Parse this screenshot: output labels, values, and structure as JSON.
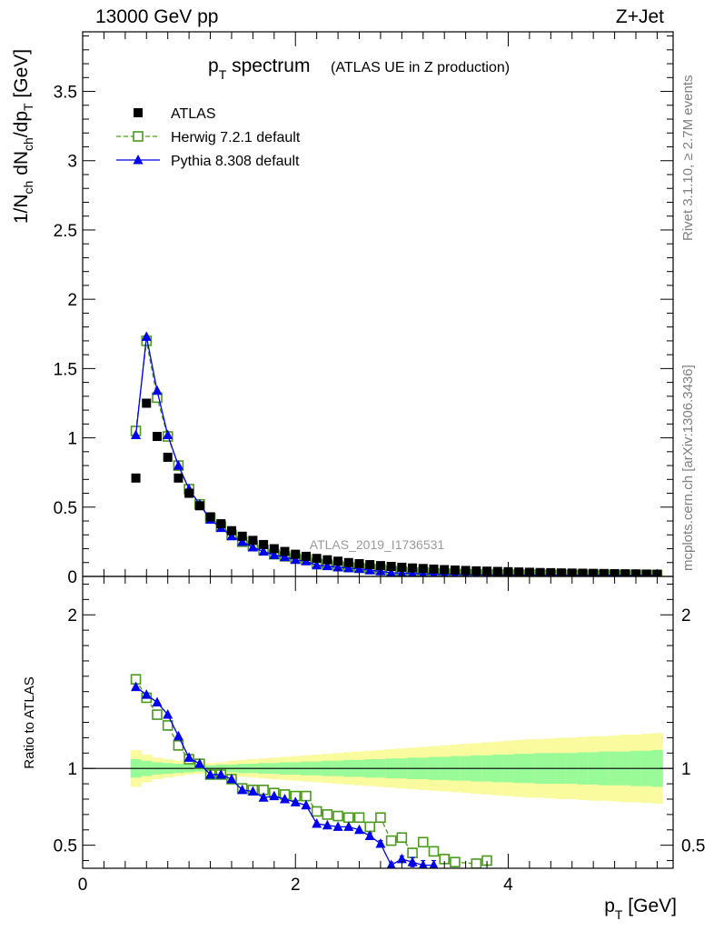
{
  "header": {
    "left": "13000 GeV pp",
    "right": "Z+Jet"
  },
  "side_labels": {
    "rivet": "Rivet 3.1.10, ≥ 2.7M events",
    "mcplots": "mcplots.cern.ch [arXiv:1306.3436]"
  },
  "watermark": "ATLAS_2019_I1736531",
  "chart_data": [
    {
      "type": "scatter",
      "panel": "main",
      "title_main": "p",
      "title_sub": "T",
      "title_rest": " spectrum",
      "title_paren": "(ATLAS UE in Z production)",
      "ylabel_parts": [
        "1/N",
        "ch",
        " dN",
        "ch",
        "/dp",
        "T",
        " [GeV]"
      ],
      "xlim": [
        0,
        5.55
      ],
      "ylim": [
        0,
        3.93
      ],
      "yticks": [
        0,
        0.5,
        1,
        1.5,
        2,
        2.5,
        3,
        3.5
      ],
      "ytick_labels": [
        "0",
        "0.5",
        "1",
        "1.5",
        "2",
        "2.5",
        "3",
        "3.5"
      ],
      "legend_position": "top-left",
      "series": [
        {
          "name": "ATLAS",
          "color": "#000000",
          "marker": "filled-square",
          "x": [
            0.5,
            0.6,
            0.7,
            0.8,
            0.9,
            1.0,
            1.1,
            1.2,
            1.3,
            1.4,
            1.5,
            1.6,
            1.7,
            1.8,
            1.9,
            2.0,
            2.1,
            2.2,
            2.3,
            2.4,
            2.5,
            2.6,
            2.7,
            2.8,
            2.9,
            3.0,
            3.1,
            3.2,
            3.3,
            3.4,
            3.5,
            3.6,
            3.7,
            3.8,
            3.9,
            4.0,
            4.1,
            4.2,
            4.3,
            4.4,
            4.5,
            4.6,
            4.7,
            4.8,
            4.9,
            5.0,
            5.1,
            5.2,
            5.3,
            5.4
          ],
          "y": [
            0.71,
            1.25,
            1.01,
            0.86,
            0.71,
            0.6,
            0.51,
            0.43,
            0.38,
            0.33,
            0.29,
            0.26,
            0.23,
            0.2,
            0.18,
            0.16,
            0.145,
            0.13,
            0.12,
            0.11,
            0.1,
            0.092,
            0.085,
            0.078,
            0.072,
            0.066,
            0.061,
            0.057,
            0.053,
            0.049,
            0.046,
            0.043,
            0.04,
            0.038,
            0.036,
            0.034,
            0.032,
            0.03,
            0.028,
            0.027,
            0.025,
            0.024,
            0.023,
            0.022,
            0.021,
            0.02,
            0.019,
            0.018,
            0.017,
            0.016
          ]
        },
        {
          "name": "Herwig 7.2.1 default",
          "color": "#4a9a1c",
          "marker": "open-square",
          "line": "dashed",
          "x": [
            0.5,
            0.6,
            0.7,
            0.8,
            0.9,
            1.0,
            1.1,
            1.2,
            1.3,
            1.4,
            1.5,
            1.6,
            1.7,
            1.8,
            1.9,
            2.0,
            2.1,
            2.2,
            2.3,
            2.4,
            2.5,
            2.6,
            2.7,
            2.8,
            2.9,
            3.0,
            3.1,
            3.2,
            3.3,
            3.4,
            3.5,
            3.6,
            3.7,
            3.8,
            3.9,
            4.0,
            4.1,
            4.2,
            4.3,
            4.4,
            4.5,
            4.6,
            4.7,
            4.8,
            4.9,
            5.0,
            5.1,
            5.2,
            5.3,
            5.4
          ],
          "y": [
            1.05,
            1.7,
            1.29,
            1.01,
            0.8,
            0.63,
            0.52,
            0.42,
            0.36,
            0.3,
            0.25,
            0.22,
            0.19,
            0.16,
            0.145,
            0.13,
            0.12,
            0.095,
            0.085,
            0.075,
            0.068,
            0.062,
            0.055,
            0.05,
            0.04,
            0.036,
            0.028,
            0.03,
            0.024,
            0.02,
            0.018,
            0.016,
            0.015,
            0.015,
            0.014,
            0.014,
            0.013,
            0.013,
            0.013,
            0.012,
            0.012,
            0.012,
            0.011,
            0.011,
            0.011,
            0.01,
            0.01,
            0.01,
            0.01,
            0.009
          ]
        },
        {
          "name": "Pythia 8.308 default",
          "color": "#0000ee",
          "marker": "filled-triangle",
          "line": "solid",
          "x": [
            0.5,
            0.6,
            0.7,
            0.8,
            0.9,
            1.0,
            1.1,
            1.2,
            1.3,
            1.4,
            1.5,
            1.6,
            1.7,
            1.8,
            1.9,
            2.0,
            2.1,
            2.2,
            2.3,
            2.4,
            2.5,
            2.6,
            2.7,
            2.8,
            2.9,
            3.0,
            3.1,
            3.2,
            3.3,
            3.4,
            3.5,
            3.6,
            3.7,
            3.8,
            3.9,
            4.0,
            4.1,
            4.2,
            4.3,
            4.4,
            4.5,
            4.6,
            4.7,
            4.8,
            4.9,
            5.0,
            5.1,
            5.2,
            5.3,
            5.4
          ],
          "y": [
            1.02,
            1.73,
            1.34,
            1.02,
            0.8,
            0.63,
            0.52,
            0.41,
            0.35,
            0.29,
            0.25,
            0.21,
            0.18,
            0.155,
            0.14,
            0.12,
            0.11,
            0.08,
            0.075,
            0.066,
            0.06,
            0.055,
            0.044,
            0.038,
            0.026,
            0.025,
            0.021,
            0.018,
            0.016,
            0.015,
            0.014,
            0.013,
            0.012,
            0.012,
            0.011,
            0.011,
            0.01,
            0.01,
            0.01,
            0.009,
            0.009,
            0.009,
            0.008,
            0.008,
            0.008,
            0.008,
            0.007,
            0.007,
            0.007,
            0.007
          ]
        }
      ]
    },
    {
      "type": "scatter",
      "panel": "ratio",
      "ylabel": "Ratio to ATLAS",
      "xlabel_main": "p",
      "xlabel_sub": "T",
      "xlabel_rest": " [GeV]",
      "xlim": [
        0,
        5.55
      ],
      "ylim": [
        0.35,
        2.25
      ],
      "xticks": [
        0,
        2,
        4
      ],
      "xtick_labels": [
        "0",
        "2",
        "4"
      ],
      "yticks": [
        0.5,
        1,
        2
      ],
      "ytick_labels": [
        "0.5",
        "1",
        "2"
      ],
      "bands": {
        "x_edges": [
          0.45,
          0.55,
          0.65,
          0.75,
          0.85,
          0.95,
          1.05,
          1.15,
          1.25,
          1.35,
          1.45,
          1.55,
          1.65,
          1.75,
          1.85,
          1.95,
          2.05,
          2.15,
          2.25,
          2.35,
          2.45,
          2.55,
          2.65,
          2.75,
          2.85,
          2.95,
          3.05,
          3.15,
          3.25,
          3.35,
          3.45,
          3.55,
          3.65,
          3.75,
          3.85,
          3.95,
          4.05,
          4.15,
          4.25,
          4.35,
          4.45,
          4.55,
          4.65,
          4.75,
          4.85,
          4.95,
          5.05,
          5.15,
          5.25,
          5.35,
          5.45
        ],
        "stat_half_width": [
          0.06,
          0.05,
          0.04,
          0.035,
          0.03,
          0.025,
          0.02,
          0.02,
          0.025,
          0.025,
          0.03,
          0.03,
          0.035,
          0.035,
          0.04,
          0.04,
          0.045,
          0.045,
          0.05,
          0.05,
          0.055,
          0.055,
          0.06,
          0.06,
          0.065,
          0.065,
          0.07,
          0.07,
          0.075,
          0.075,
          0.08,
          0.08,
          0.085,
          0.085,
          0.09,
          0.09,
          0.095,
          0.095,
          0.1,
          0.1,
          0.1,
          0.1,
          0.105,
          0.105,
          0.11,
          0.11,
          0.11,
          0.115,
          0.115,
          0.12
        ],
        "total_half_width": [
          0.12,
          0.09,
          0.07,
          0.06,
          0.05,
          0.04,
          0.035,
          0.035,
          0.04,
          0.05,
          0.055,
          0.06,
          0.065,
          0.07,
          0.075,
          0.08,
          0.085,
          0.09,
          0.095,
          0.1,
          0.105,
          0.11,
          0.115,
          0.12,
          0.125,
          0.13,
          0.135,
          0.14,
          0.145,
          0.15,
          0.155,
          0.16,
          0.165,
          0.17,
          0.175,
          0.18,
          0.185,
          0.19,
          0.19,
          0.195,
          0.2,
          0.2,
          0.205,
          0.21,
          0.21,
          0.215,
          0.22,
          0.22,
          0.225,
          0.23
        ],
        "stat_color": "#98fb98",
        "total_color": "#fafa9e"
      },
      "series": [
        {
          "name": "Herwig 7.2.1 default",
          "color": "#4a9a1c",
          "marker": "open-square",
          "line": "dashed",
          "x": [
            0.5,
            0.6,
            0.7,
            0.8,
            0.9,
            1.0,
            1.1,
            1.2,
            1.3,
            1.4,
            1.5,
            1.6,
            1.7,
            1.8,
            1.9,
            2.0,
            2.1,
            2.2,
            2.3,
            2.4,
            2.5,
            2.6,
            2.7,
            2.8,
            2.9,
            3.0,
            3.1,
            3.2,
            3.3,
            3.4,
            3.5,
            3.7,
            3.8
          ],
          "y": [
            1.58,
            1.46,
            1.35,
            1.28,
            1.15,
            1.06,
            1.03,
            0.96,
            0.96,
            0.93,
            0.87,
            0.86,
            0.86,
            0.84,
            0.83,
            0.82,
            0.82,
            0.72,
            0.7,
            0.69,
            0.68,
            0.68,
            0.62,
            0.68,
            0.53,
            0.55,
            0.45,
            0.52,
            0.46,
            0.41,
            0.39,
            0.38,
            0.4
          ],
          "err": [
            0.01,
            0.01,
            0.01,
            0.01,
            0.01,
            0.01,
            0.01,
            0.01,
            0.01,
            0.01,
            0.01,
            0.01,
            0.01,
            0.01,
            0.01,
            0.01,
            0.01,
            0.01,
            0.01,
            0.01,
            0.01,
            0.01,
            0.02,
            0.02,
            0.02,
            0.02,
            0.03,
            0.03,
            0.03,
            0.03,
            0.03,
            0.03,
            0.03
          ]
        },
        {
          "name": "Pythia 8.308 default",
          "color": "#0000ee",
          "marker": "filled-triangle",
          "line": "solid",
          "x": [
            0.5,
            0.6,
            0.7,
            0.8,
            0.9,
            1.0,
            1.1,
            1.2,
            1.3,
            1.4,
            1.5,
            1.6,
            1.7,
            1.8,
            1.9,
            2.0,
            2.1,
            2.2,
            2.3,
            2.4,
            2.5,
            2.6,
            2.7,
            2.8,
            2.9,
            3.0,
            3.1,
            3.2,
            3.3
          ],
          "y": [
            1.53,
            1.48,
            1.43,
            1.35,
            1.21,
            1.07,
            1.03,
            0.96,
            0.96,
            0.93,
            0.86,
            0.85,
            0.81,
            0.82,
            0.8,
            0.78,
            0.76,
            0.64,
            0.63,
            0.62,
            0.62,
            0.6,
            0.56,
            0.51,
            0.37,
            0.41,
            0.39,
            0.37,
            0.37
          ],
          "err": [
            0.01,
            0.01,
            0.01,
            0.01,
            0.01,
            0.01,
            0.01,
            0.01,
            0.01,
            0.01,
            0.01,
            0.01,
            0.01,
            0.01,
            0.01,
            0.01,
            0.01,
            0.01,
            0.01,
            0.01,
            0.01,
            0.01,
            0.02,
            0.02,
            0.02,
            0.02,
            0.03,
            0.03,
            0.03
          ]
        }
      ]
    }
  ]
}
